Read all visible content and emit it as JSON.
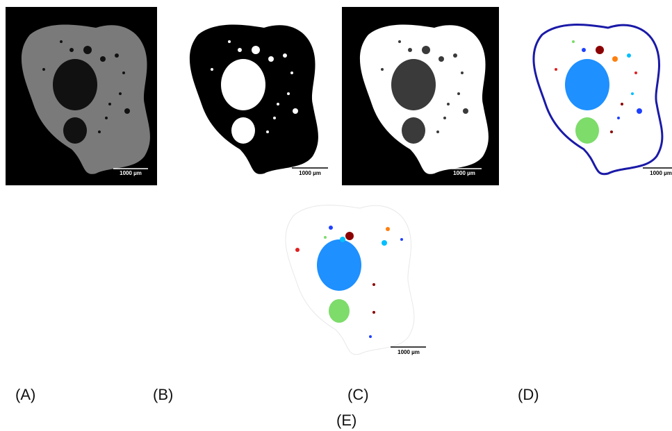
{
  "panels": [
    {
      "label": "(A)",
      "scale_bar": "1000 µm"
    },
    {
      "label": "(B)",
      "scale_bar": "1000 µm"
    },
    {
      "label": "(C)",
      "scale_bar": "1000 µm"
    },
    {
      "label": "(D)",
      "scale_bar": "1000 µm"
    },
    {
      "label": "(E)",
      "scale_bar": "1000 µm"
    }
  ]
}
